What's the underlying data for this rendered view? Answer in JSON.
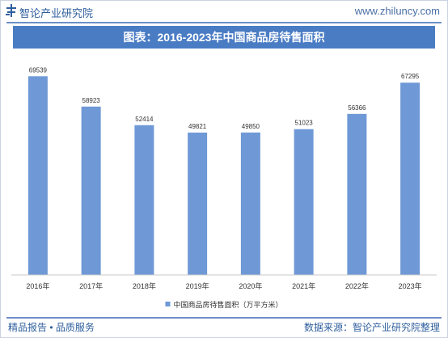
{
  "header": {
    "brand": "智论产业研究院",
    "website": "www.zhiluncy.com"
  },
  "footer": {
    "left": "精品报告 • 品质服务",
    "right": "数据来源：智论产业研究院整理"
  },
  "colors": {
    "bar": "#6f99d6",
    "banner": "#4a7cc4",
    "accent": "#2f5f9e"
  },
  "chart_data": {
    "type": "bar",
    "title": "图表：2016-2023年中国商品房待售面积",
    "categories": [
      "2016年",
      "2017年",
      "2018年",
      "2019年",
      "2020年",
      "2021年",
      "2022年",
      "2023年"
    ],
    "series": [
      {
        "name": "中国商品房待售面积（万平方米）",
        "values": [
          69539,
          58923,
          52414,
          49821,
          49850,
          51023,
          56366,
          67295
        ]
      }
    ],
    "ylim": [
      0,
      75000
    ],
    "grid": false,
    "legend": "bottom",
    "data_labels": true
  }
}
